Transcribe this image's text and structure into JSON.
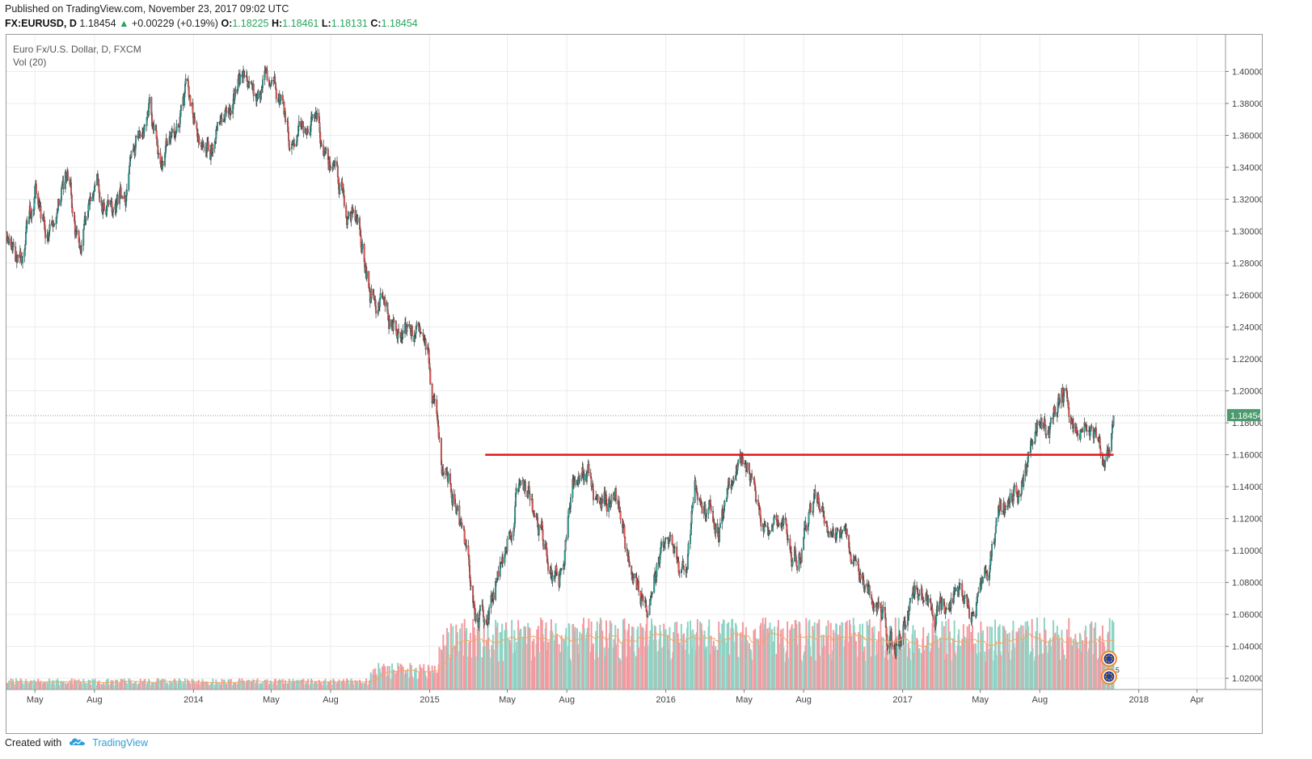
{
  "header": {
    "published": "Published on TradingView.com, November 23, 2017 09:02 UTC",
    "symbol": "FX:EURUSD, D",
    "last": "1.18454",
    "change": "+0.00229 (+0.19%)",
    "o_label": "O:",
    "o_value": "1.18225",
    "h_label": "H:",
    "h_value": "1.18461",
    "l_label": "L:",
    "l_value": "1.18131",
    "c_label": "C:",
    "c_value": "1.18454"
  },
  "legend": {
    "title": "Euro Fx/U.S. Dollar, D, FXCM",
    "volume": "Vol (20)"
  },
  "footer": {
    "created_with": "Created with",
    "brand": "TradingView"
  },
  "colors": {
    "up": "#26a69a",
    "down": "#ef5350",
    "vol_up": "#8fd3c4",
    "vol_down": "#f29aa0",
    "level_line": "#e5161b",
    "ma_line": "#f0a868",
    "price_tag": "#4c9a6e"
  },
  "chart_data": {
    "type": "candlestick",
    "symbol": "EURUSD",
    "timeframe": "D",
    "last_price": 1.18454,
    "last_price_label": "1.18454",
    "ylim": [
      1.013,
      1.423
    ],
    "y_ticks": [
      "1.40000",
      "1.38000",
      "1.36000",
      "1.34000",
      "1.32000",
      "1.30000",
      "1.28000",
      "1.26000",
      "1.24000",
      "1.22000",
      "1.20000",
      "1.18000",
      "1.16000",
      "1.14000",
      "1.12000",
      "1.10000",
      "1.08000",
      "1.06000",
      "1.04000",
      "1.02000"
    ],
    "x_range": [
      "2013-03-18",
      "2018-05-15"
    ],
    "x_ticks": [
      {
        "date": "2013-05-01",
        "label": "May"
      },
      {
        "date": "2013-08-01",
        "label": "Aug"
      },
      {
        "date": "2014-01-01",
        "label": "2014"
      },
      {
        "date": "2014-05-01",
        "label": "May"
      },
      {
        "date": "2014-08-01",
        "label": "Aug"
      },
      {
        "date": "2015-01-01",
        "label": "2015"
      },
      {
        "date": "2015-05-01",
        "label": "May"
      },
      {
        "date": "2015-08-01",
        "label": "Aug"
      },
      {
        "date": "2016-01-01",
        "label": "2016"
      },
      {
        "date": "2016-05-01",
        "label": "May"
      },
      {
        "date": "2016-08-01",
        "label": "Aug"
      },
      {
        "date": "2017-01-01",
        "label": "2017"
      },
      {
        "date": "2017-05-01",
        "label": "May"
      },
      {
        "date": "2017-08-01",
        "label": "Aug"
      },
      {
        "date": "2018-01-01",
        "label": "2018"
      },
      {
        "date": "2018-04-01",
        "label": "Apr"
      }
    ],
    "price_path": [
      {
        "date": "2013-03-18",
        "close": 1.298
      },
      {
        "date": "2013-04-05",
        "close": 1.28
      },
      {
        "date": "2013-05-01",
        "close": 1.32
      },
      {
        "date": "2013-05-25",
        "close": 1.295
      },
      {
        "date": "2013-06-20",
        "close": 1.338
      },
      {
        "date": "2013-07-10",
        "close": 1.28
      },
      {
        "date": "2013-08-05",
        "close": 1.33
      },
      {
        "date": "2013-09-05",
        "close": 1.315
      },
      {
        "date": "2013-10-25",
        "close": 1.38
      },
      {
        "date": "2013-11-10",
        "close": 1.34
      },
      {
        "date": "2013-12-20",
        "close": 1.385
      },
      {
        "date": "2014-02-01",
        "close": 1.35
      },
      {
        "date": "2014-03-15",
        "close": 1.395
      },
      {
        "date": "2014-04-10",
        "close": 1.375
      },
      {
        "date": "2014-05-08",
        "close": 1.398
      },
      {
        "date": "2014-06-01",
        "close": 1.36
      },
      {
        "date": "2014-07-01",
        "close": 1.368
      },
      {
        "date": "2014-08-01",
        "close": 1.342
      },
      {
        "date": "2014-09-01",
        "close": 1.314
      },
      {
        "date": "2014-10-01",
        "close": 1.265
      },
      {
        "date": "2014-11-01",
        "close": 1.248
      },
      {
        "date": "2014-12-01",
        "close": 1.244
      },
      {
        "date": "2015-01-01",
        "close": 1.21
      },
      {
        "date": "2015-01-20",
        "close": 1.15
      },
      {
        "date": "2015-02-10",
        "close": 1.135
      },
      {
        "date": "2015-03-15",
        "close": 1.055
      },
      {
        "date": "2015-04-10",
        "close": 1.07
      },
      {
        "date": "2015-05-15",
        "close": 1.14
      },
      {
        "date": "2015-06-15",
        "close": 1.12
      },
      {
        "date": "2015-07-20",
        "close": 1.09
      },
      {
        "date": "2015-08-24",
        "close": 1.165
      },
      {
        "date": "2015-09-20",
        "close": 1.125
      },
      {
        "date": "2015-10-15",
        "close": 1.14
      },
      {
        "date": "2015-11-15",
        "close": 1.07
      },
      {
        "date": "2015-12-03",
        "close": 1.055
      },
      {
        "date": "2015-12-20",
        "close": 1.09
      },
      {
        "date": "2016-02-01",
        "close": 1.085
      },
      {
        "date": "2016-02-15",
        "close": 1.13
      },
      {
        "date": "2016-03-20",
        "close": 1.115
      },
      {
        "date": "2016-05-03",
        "close": 1.155
      },
      {
        "date": "2016-06-01",
        "close": 1.12
      },
      {
        "date": "2016-06-24",
        "close": 1.11
      },
      {
        "date": "2016-07-15",
        "close": 1.1
      },
      {
        "date": "2016-08-20",
        "close": 1.13
      },
      {
        "date": "2016-09-20",
        "close": 1.12
      },
      {
        "date": "2016-10-20",
        "close": 1.09
      },
      {
        "date": "2016-11-15",
        "close": 1.07
      },
      {
        "date": "2016-12-20",
        "close": 1.04
      },
      {
        "date": "2017-01-20",
        "close": 1.07
      },
      {
        "date": "2017-02-20",
        "close": 1.06
      },
      {
        "date": "2017-03-25",
        "close": 1.08
      },
      {
        "date": "2017-04-15",
        "close": 1.065
      },
      {
        "date": "2017-05-15",
        "close": 1.1
      },
      {
        "date": "2017-06-10",
        "close": 1.125
      },
      {
        "date": "2017-07-01",
        "close": 1.14
      },
      {
        "date": "2017-08-01",
        "close": 1.18
      },
      {
        "date": "2017-08-15",
        "close": 1.17
      },
      {
        "date": "2017-09-08",
        "close": 1.205
      },
      {
        "date": "2017-10-01",
        "close": 1.175
      },
      {
        "date": "2017-10-15",
        "close": 1.182
      },
      {
        "date": "2017-11-05",
        "close": 1.16
      },
      {
        "date": "2017-11-23",
        "close": 1.18454
      }
    ],
    "annotations": [
      {
        "type": "horizontal_line",
        "price": 1.16,
        "from": "2015-03-28",
        "to": "2017-11-23",
        "color": "red"
      }
    ],
    "volume": {
      "label": "Vol (20)",
      "segments": [
        {
          "from": "2013-03-18",
          "to": "2014-10-01",
          "level": 0.05
        },
        {
          "from": "2014-10-01",
          "to": "2015-01-15",
          "level": 0.12
        },
        {
          "from": "2015-01-15",
          "to": "2017-11-23",
          "level": 0.32
        }
      ]
    },
    "events": [
      {
        "date": "2017-11-16",
        "kind": "eu-flag-marker"
      },
      {
        "date": "2017-11-16",
        "kind": "eu-flag-marker",
        "count": "5"
      }
    ]
  }
}
